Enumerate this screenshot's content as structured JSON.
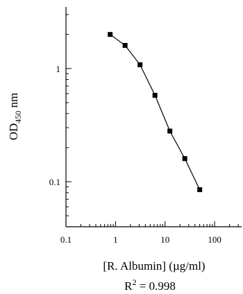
{
  "chart_data": {
    "type": "line",
    "xscale": "log",
    "yscale": "log",
    "xlim": [
      0.1,
      350
    ],
    "ylim": [
      0.04,
      3.5
    ],
    "xticks": [
      0.1,
      1,
      10,
      100
    ],
    "xtick_labels": [
      "0.1",
      "1",
      "10",
      "100"
    ],
    "yticks": [
      0.1,
      1
    ],
    "ytick_labels": [
      "0.1",
      "1"
    ],
    "xlabel": "[R. Albumin] (µg/ml)",
    "ylabel": {
      "main": "OD",
      "subscript": "450",
      "unit": " nm"
    },
    "annotation": {
      "base": "R",
      "superscript": "2",
      "text": " = 0.998"
    },
    "grid": false,
    "legend": "none",
    "marker": "square",
    "color": "#000000",
    "series": [
      {
        "x": [
          0.78,
          1.56,
          3.125,
          6.25,
          12.5,
          25,
          50
        ],
        "y": [
          2.0,
          1.6,
          1.08,
          0.58,
          0.28,
          0.16,
          0.085
        ]
      }
    ]
  }
}
